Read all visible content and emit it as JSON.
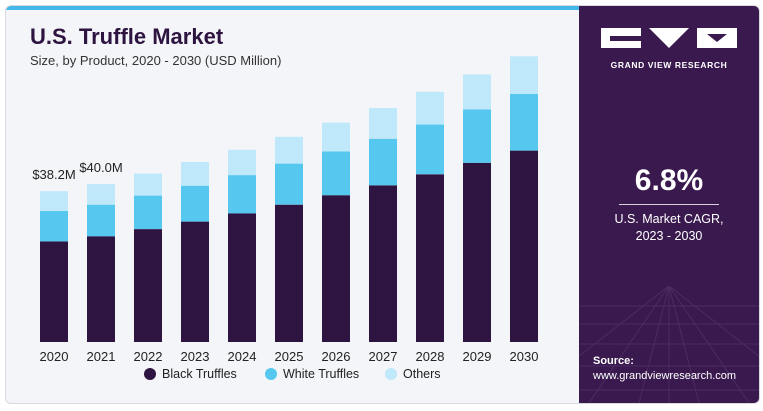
{
  "header": {
    "title": "U.S. Truffle Market",
    "subtitle": "Size, by Product, 2020 - 2030 (USD Million)"
  },
  "colors": {
    "black_truffles": "#2e1440",
    "white_truffles": "#56c8f0",
    "others": "#bfe8fa",
    "title": "#2e1440",
    "panel": "#3a1a4e",
    "accent": "#44b8e8"
  },
  "sidebar": {
    "brand": "GRAND VIEW RESEARCH",
    "cagr_value": "6.8%",
    "cagr_label_line1": "U.S. Market CAGR,",
    "cagr_label_line2": "2023 - 2030",
    "source_label": "Source:",
    "source_url": "www.grandviewresearch.com"
  },
  "chart_data": {
    "type": "bar",
    "stacked": true,
    "title": "U.S. Truffle Market",
    "subtitle": "Size, by Product, 2020 - 2030 (USD Million)",
    "categories": [
      "2020",
      "2021",
      "2022",
      "2023",
      "2024",
      "2025",
      "2026",
      "2027",
      "2028",
      "2029",
      "2030"
    ],
    "series": [
      {
        "name": "Black Truffles",
        "values": [
          25.5,
          26.8,
          28.6,
          30.5,
          32.6,
          34.8,
          37.2,
          39.7,
          42.5,
          45.4,
          48.5
        ]
      },
      {
        "name": "White Truffles",
        "values": [
          7.7,
          8.0,
          8.5,
          9.1,
          9.7,
          10.4,
          11.1,
          11.8,
          12.6,
          13.5,
          14.4
        ]
      },
      {
        "name": "Others",
        "values": [
          5.0,
          5.2,
          5.6,
          6.0,
          6.4,
          6.8,
          7.3,
          7.8,
          8.3,
          8.9,
          9.5
        ]
      }
    ],
    "data_labels": [
      {
        "category": "2020",
        "text": "$38.2M"
      },
      {
        "category": "2021",
        "text": "$40.0M"
      }
    ],
    "legend_position": "bottom",
    "grid": false,
    "ylim": [
      0,
      75
    ]
  }
}
